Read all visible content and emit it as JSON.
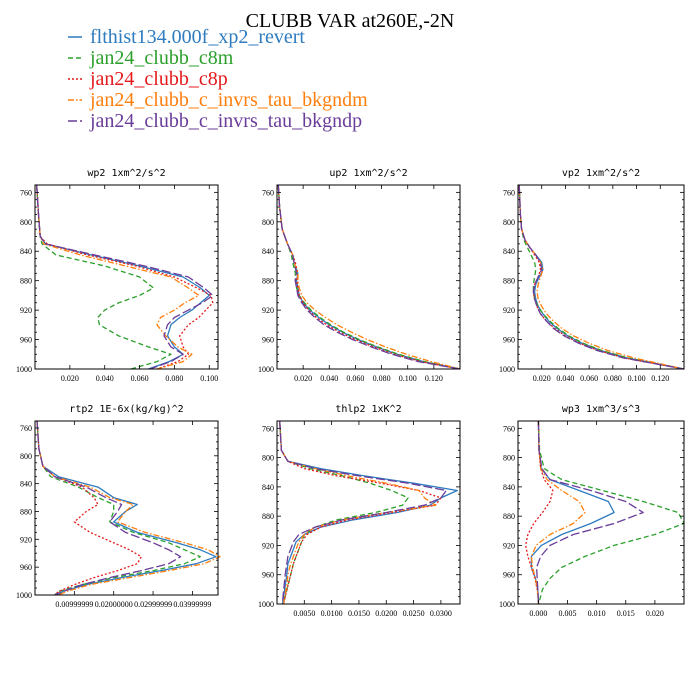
{
  "title": "CLUBB VAR at260E,-2N",
  "legend": [
    {
      "name": "flthist134.000f_xp2_revert",
      "color": "#2e7bbf",
      "dash": "solid"
    },
    {
      "name": "jan24_clubb_c8m",
      "color": "#2ca02c",
      "dash": "dashed"
    },
    {
      "name": "jan24_clubb_c8p",
      "color": "#e41a1c",
      "dash": "dotted"
    },
    {
      "name": "jan24_clubb_c_invrs_tau_bkgndm",
      "color": "#ff7f0e",
      "dash": "dashdot"
    },
    {
      "name": "jan24_clubb_c_invrs_tau_bkgndp",
      "color": "#6a3d9a",
      "dash": "longdash"
    }
  ],
  "chart_data": [
    {
      "type": "line",
      "title": "wp2  1xm^2/s^2",
      "xlim": [
        0.0,
        0.105
      ],
      "ylim": [
        1000,
        750
      ],
      "xticks": [
        0.02,
        0.04,
        0.06,
        0.08,
        0.1
      ],
      "xtick_labels": [
        "0.020",
        "0.040",
        "0.060",
        "0.080",
        "0.100"
      ],
      "yticks": [
        760,
        800,
        840,
        880,
        920,
        960,
        1000
      ],
      "y": [
        750,
        790,
        820,
        830,
        845,
        860,
        875,
        890,
        900,
        910,
        920,
        930,
        940,
        955,
        970,
        980,
        990,
        1000
      ],
      "series": [
        {
          "values": [
            0.001,
            0.002,
            0.003,
            0.006,
            0.032,
            0.06,
            0.085,
            0.095,
            0.1,
            0.095,
            0.09,
            0.083,
            0.078,
            0.076,
            0.08,
            0.085,
            0.077,
            0.065
          ]
        },
        {
          "values": [
            0.001,
            0.002,
            0.003,
            0.004,
            0.012,
            0.04,
            0.06,
            0.068,
            0.06,
            0.048,
            0.04,
            0.036,
            0.037,
            0.048,
            0.065,
            0.078,
            0.07,
            0.055
          ]
        },
        {
          "values": [
            0.001,
            0.002,
            0.003,
            0.007,
            0.03,
            0.058,
            0.08,
            0.093,
            0.101,
            0.102,
            0.098,
            0.094,
            0.088,
            0.083,
            0.085,
            0.088,
            0.082,
            0.07
          ]
        },
        {
          "values": [
            0.001,
            0.002,
            0.003,
            0.005,
            0.026,
            0.052,
            0.078,
            0.088,
            0.094,
            0.086,
            0.08,
            0.072,
            0.07,
            0.075,
            0.082,
            0.09,
            0.085,
            0.07
          ]
        },
        {
          "values": [
            0.001,
            0.002,
            0.003,
            0.006,
            0.034,
            0.063,
            0.088,
            0.097,
            0.102,
            0.096,
            0.088,
            0.08,
            0.076,
            0.074,
            0.078,
            0.085,
            0.078,
            0.066
          ]
        }
      ]
    },
    {
      "type": "line",
      "title": "up2  1xm^2/s^2",
      "xlim": [
        0.0,
        0.14
      ],
      "ylim": [
        1000,
        750
      ],
      "xticks": [
        0.02,
        0.04,
        0.06,
        0.08,
        0.1,
        0.12
      ],
      "xtick_labels": [
        "0.020",
        "0.040",
        "0.060",
        "0.080",
        "0.100",
        "0.120"
      ],
      "yticks": [
        760,
        800,
        840,
        880,
        920,
        960,
        1000
      ],
      "y": [
        750,
        780,
        810,
        830,
        845,
        855,
        870,
        880,
        890,
        900,
        910,
        920,
        930,
        940,
        950,
        960,
        970,
        980,
        990,
        1000
      ],
      "series": [
        {
          "values": [
            0.001,
            0.002,
            0.004,
            0.008,
            0.012,
            0.013,
            0.016,
            0.015,
            0.016,
            0.017,
            0.02,
            0.025,
            0.032,
            0.04,
            0.05,
            0.062,
            0.076,
            0.092,
            0.112,
            0.14
          ]
        },
        {
          "values": [
            0.001,
            0.002,
            0.004,
            0.008,
            0.011,
            0.012,
            0.014,
            0.014,
            0.015,
            0.017,
            0.021,
            0.026,
            0.033,
            0.041,
            0.051,
            0.063,
            0.077,
            0.093,
            0.113,
            0.14
          ]
        },
        {
          "values": [
            0.001,
            0.002,
            0.004,
            0.008,
            0.012,
            0.014,
            0.016,
            0.015,
            0.016,
            0.017,
            0.02,
            0.024,
            0.03,
            0.038,
            0.048,
            0.06,
            0.074,
            0.09,
            0.11,
            0.14
          ]
        },
        {
          "values": [
            0.001,
            0.002,
            0.004,
            0.008,
            0.012,
            0.013,
            0.016,
            0.016,
            0.017,
            0.019,
            0.023,
            0.029,
            0.037,
            0.046,
            0.057,
            0.069,
            0.083,
            0.099,
            0.118,
            0.14
          ]
        },
        {
          "values": [
            0.001,
            0.002,
            0.004,
            0.008,
            0.012,
            0.013,
            0.015,
            0.014,
            0.015,
            0.016,
            0.019,
            0.023,
            0.029,
            0.036,
            0.046,
            0.058,
            0.072,
            0.088,
            0.108,
            0.14
          ]
        }
      ]
    },
    {
      "type": "line",
      "title": "vp2  1xm^2/s^2",
      "xlim": [
        0.0,
        0.14
      ],
      "ylim": [
        1000,
        750
      ],
      "xticks": [
        0.02,
        0.04,
        0.06,
        0.08,
        0.1,
        0.12
      ],
      "xtick_labels": [
        "0.020",
        "0.040",
        "0.060",
        "0.080",
        "0.100",
        "0.120"
      ],
      "yticks": [
        760,
        800,
        840,
        880,
        920,
        960,
        1000
      ],
      "y": [
        750,
        790,
        810,
        825,
        835,
        845,
        855,
        865,
        875,
        885,
        895,
        905,
        915,
        925,
        935,
        945,
        955,
        965,
        975,
        985,
        1000
      ],
      "series": [
        {
          "values": [
            0.001,
            0.002,
            0.003,
            0.006,
            0.01,
            0.015,
            0.02,
            0.021,
            0.018,
            0.015,
            0.014,
            0.015,
            0.017,
            0.021,
            0.026,
            0.033,
            0.042,
            0.054,
            0.07,
            0.092,
            0.14
          ]
        },
        {
          "values": [
            0.001,
            0.002,
            0.003,
            0.005,
            0.008,
            0.011,
            0.014,
            0.015,
            0.014,
            0.013,
            0.013,
            0.014,
            0.017,
            0.021,
            0.027,
            0.034,
            0.043,
            0.055,
            0.071,
            0.093,
            0.14
          ]
        },
        {
          "values": [
            0.001,
            0.002,
            0.003,
            0.006,
            0.01,
            0.014,
            0.018,
            0.019,
            0.017,
            0.014,
            0.013,
            0.014,
            0.016,
            0.019,
            0.024,
            0.031,
            0.04,
            0.052,
            0.068,
            0.09,
            0.14
          ]
        },
        {
          "values": [
            0.001,
            0.002,
            0.003,
            0.006,
            0.01,
            0.015,
            0.019,
            0.021,
            0.019,
            0.017,
            0.016,
            0.017,
            0.02,
            0.024,
            0.03,
            0.037,
            0.047,
            0.06,
            0.076,
            0.098,
            0.14
          ]
        },
        {
          "values": [
            0.001,
            0.002,
            0.003,
            0.006,
            0.01,
            0.015,
            0.019,
            0.02,
            0.017,
            0.014,
            0.013,
            0.014,
            0.016,
            0.019,
            0.024,
            0.03,
            0.039,
            0.051,
            0.067,
            0.089,
            0.14
          ]
        }
      ]
    },
    {
      "type": "line",
      "title": "rtp2  1E-6x(kg/kg)^2",
      "xlim": [
        0.0,
        0.0465
      ],
      "ylim": [
        1000,
        750
      ],
      "xticks": [
        0.01,
        0.02,
        0.03,
        0.04
      ],
      "xtick_labels": [
        "0.00999999",
        "0.02000000",
        "0.02999999",
        "0.03999999"
      ],
      "yticks": [
        760,
        800,
        840,
        880,
        920,
        960,
        1000
      ],
      "y": [
        750,
        790,
        815,
        830,
        845,
        860,
        870,
        880,
        895,
        910,
        925,
        935,
        945,
        955,
        965,
        975,
        985,
        995,
        1000
      ],
      "series": [
        {
          "values": [
            0.0005,
            0.001,
            0.002,
            0.006,
            0.016,
            0.02,
            0.026,
            0.023,
            0.02,
            0.026,
            0.036,
            0.042,
            0.046,
            0.041,
            0.032,
            0.022,
            0.013,
            0.007,
            0.006
          ]
        },
        {
          "values": [
            0.0005,
            0.001,
            0.002,
            0.004,
            0.011,
            0.016,
            0.02,
            0.02,
            0.019,
            0.025,
            0.034,
            0.038,
            0.042,
            0.038,
            0.03,
            0.02,
            0.012,
            0.006,
            0.005
          ]
        },
        {
          "values": [
            0.0005,
            0.001,
            0.002,
            0.005,
            0.012,
            0.015,
            0.016,
            0.013,
            0.01,
            0.014,
            0.02,
            0.024,
            0.027,
            0.026,
            0.021,
            0.015,
            0.01,
            0.006,
            0.005
          ]
        },
        {
          "values": [
            0.0005,
            0.001,
            0.002,
            0.005,
            0.014,
            0.019,
            0.025,
            0.023,
            0.021,
            0.028,
            0.038,
            0.044,
            0.047,
            0.043,
            0.034,
            0.024,
            0.014,
            0.008,
            0.006
          ]
        },
        {
          "values": [
            0.0005,
            0.001,
            0.002,
            0.005,
            0.013,
            0.018,
            0.022,
            0.021,
            0.019,
            0.023,
            0.03,
            0.034,
            0.037,
            0.034,
            0.027,
            0.019,
            0.012,
            0.007,
            0.005
          ]
        }
      ]
    },
    {
      "type": "line",
      "title": "thlp2  1xK^2",
      "xlim": [
        0.0,
        0.0335
      ],
      "ylim": [
        1000,
        750
      ],
      "xticks": [
        0.005,
        0.01,
        0.015,
        0.02,
        0.025,
        0.03
      ],
      "xtick_labels": [
        "0.0050",
        "0.0100",
        "0.0150",
        "0.0200",
        "0.0250",
        "0.0300"
      ],
      "yticks": [
        760,
        800,
        840,
        880,
        920,
        960,
        1000
      ],
      "y": [
        750,
        790,
        805,
        815,
        825,
        835,
        845,
        855,
        865,
        875,
        885,
        895,
        905,
        915,
        925,
        935,
        945,
        960,
        975,
        990,
        1000
      ],
      "series": [
        {
          "values": [
            0.0005,
            0.0008,
            0.002,
            0.008,
            0.016,
            0.025,
            0.033,
            0.03,
            0.028,
            0.022,
            0.014,
            0.008,
            0.005,
            0.0035,
            0.003,
            0.0025,
            0.002,
            0.0018,
            0.0015,
            0.0012,
            0.001
          ]
        },
        {
          "values": [
            0.0005,
            0.0008,
            0.002,
            0.006,
            0.012,
            0.017,
            0.021,
            0.024,
            0.023,
            0.018,
            0.011,
            0.007,
            0.005,
            0.0045,
            0.004,
            0.0035,
            0.003,
            0.0025,
            0.002,
            0.0015,
            0.0012
          ]
        },
        {
          "values": [
            0.0005,
            0.0008,
            0.002,
            0.005,
            0.011,
            0.019,
            0.026,
            0.03,
            0.029,
            0.021,
            0.013,
            0.008,
            0.0055,
            0.0045,
            0.004,
            0.0035,
            0.003,
            0.0025,
            0.002,
            0.0015,
            0.0012
          ]
        },
        {
          "values": [
            0.0005,
            0.0008,
            0.002,
            0.007,
            0.013,
            0.02,
            0.026,
            0.027,
            0.029,
            0.02,
            0.012,
            0.007,
            0.005,
            0.004,
            0.0035,
            0.003,
            0.0025,
            0.002,
            0.0018,
            0.0014,
            0.0012
          ]
        },
        {
          "values": [
            0.0005,
            0.0008,
            0.002,
            0.007,
            0.015,
            0.024,
            0.031,
            0.03,
            0.027,
            0.02,
            0.012,
            0.007,
            0.004,
            0.003,
            0.0025,
            0.002,
            0.0018,
            0.0015,
            0.0013,
            0.0011,
            0.001
          ]
        }
      ]
    },
    {
      "type": "line",
      "title": "wp3  1xm^3/s^3",
      "xlim": [
        -0.0035,
        0.025
      ],
      "ylim": [
        1000,
        750
      ],
      "xticks": [
        0.0,
        0.005,
        0.01,
        0.015,
        0.02
      ],
      "xtick_labels": [
        "0.000",
        "0.005",
        "0.010",
        "0.015",
        "0.020"
      ],
      "yticks": [
        760,
        800,
        840,
        880,
        920,
        960,
        1000
      ],
      "y": [
        750,
        790,
        815,
        830,
        845,
        860,
        875,
        890,
        905,
        920,
        935,
        950,
        965,
        980,
        995,
        1000
      ],
      "series": [
        {
          "values": [
            0.0,
            0.0001,
            0.0005,
            0.002,
            0.007,
            0.012,
            0.013,
            0.009,
            0.004,
            0.0005,
            -0.0012,
            -0.0012,
            -0.0005,
            -0.0001,
            0.0,
            0.0
          ]
        },
        {
          "values": [
            0.0,
            0.0002,
            0.001,
            0.004,
            0.011,
            0.018,
            0.024,
            0.025,
            0.02,
            0.013,
            0.008,
            0.004,
            0.002,
            0.0007,
            0.0002,
            0.0001
          ]
        },
        {
          "values": [
            0.0,
            0.0001,
            0.0004,
            0.001,
            0.0025,
            0.002,
            0.0007,
            -0.0008,
            -0.0018,
            -0.0022,
            -0.0018,
            -0.0012,
            -0.0006,
            -0.0002,
            0.0,
            0.0
          ]
        },
        {
          "values": [
            0.0,
            0.0001,
            0.0004,
            0.0015,
            0.004,
            0.007,
            0.008,
            0.006,
            0.002,
            -0.0004,
            -0.0012,
            -0.001,
            -0.0005,
            -0.0002,
            0.0,
            0.0
          ]
        },
        {
          "values": [
            0.0,
            0.0001,
            0.0006,
            0.002,
            0.009,
            0.015,
            0.018,
            0.013,
            0.006,
            0.002,
            0.0004,
            -0.0003,
            -0.0002,
            -0.0001,
            0.0,
            0.0
          ]
        }
      ]
    }
  ]
}
